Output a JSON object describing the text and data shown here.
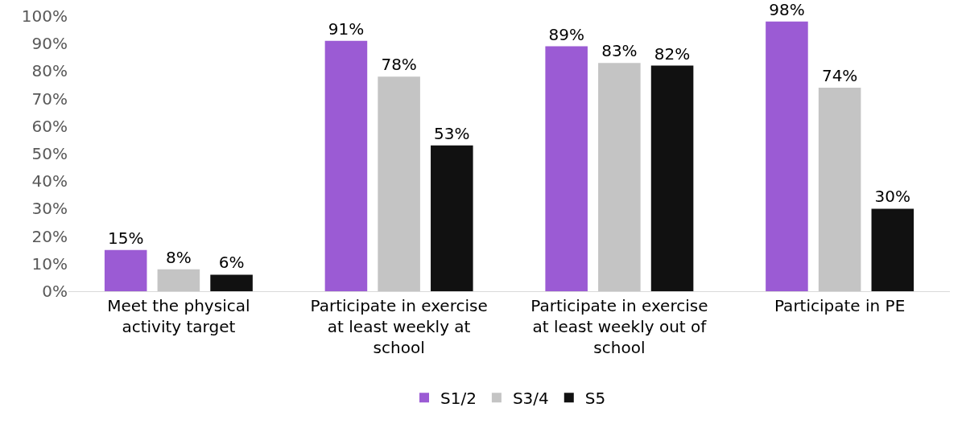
{
  "chart_data": {
    "type": "bar",
    "categories": [
      "Meet the physical activity target",
      "Participate in exercise at least weekly at school",
      "Participate in exercise at least weekly out of school",
      "Participate in PE"
    ],
    "series": [
      {
        "name": "S1/2",
        "color": "#9b5bd4",
        "values": [
          15,
          91,
          89,
          98
        ],
        "value_labels": [
          "15%",
          "91%",
          "89%",
          "98%"
        ]
      },
      {
        "name": "S3/4",
        "color": "#c4c4c4",
        "values": [
          8,
          78,
          83,
          74
        ],
        "value_labels": [
          "8%",
          "78%",
          "83%",
          "74%"
        ]
      },
      {
        "name": "S5",
        "color": "#111111",
        "values": [
          6,
          53,
          82,
          30
        ],
        "value_labels": [
          "6%",
          "53%",
          "82%",
          "30%"
        ]
      }
    ],
    "ylim": [
      0,
      100
    ],
    "yticks": [
      {
        "value": 0,
        "label": "0%"
      },
      {
        "value": 10,
        "label": "10%"
      },
      {
        "value": 20,
        "label": "20%"
      },
      {
        "value": 30,
        "label": "30%"
      },
      {
        "value": 40,
        "label": "40%"
      },
      {
        "value": 50,
        "label": "50%"
      },
      {
        "value": 60,
        "label": "60%"
      },
      {
        "value": 70,
        "label": "70%"
      },
      {
        "value": 80,
        "label": "80%"
      },
      {
        "value": 90,
        "label": "90%"
      },
      {
        "value": 100,
        "label": "100%"
      }
    ],
    "grid": false,
    "legend": "bottom"
  }
}
